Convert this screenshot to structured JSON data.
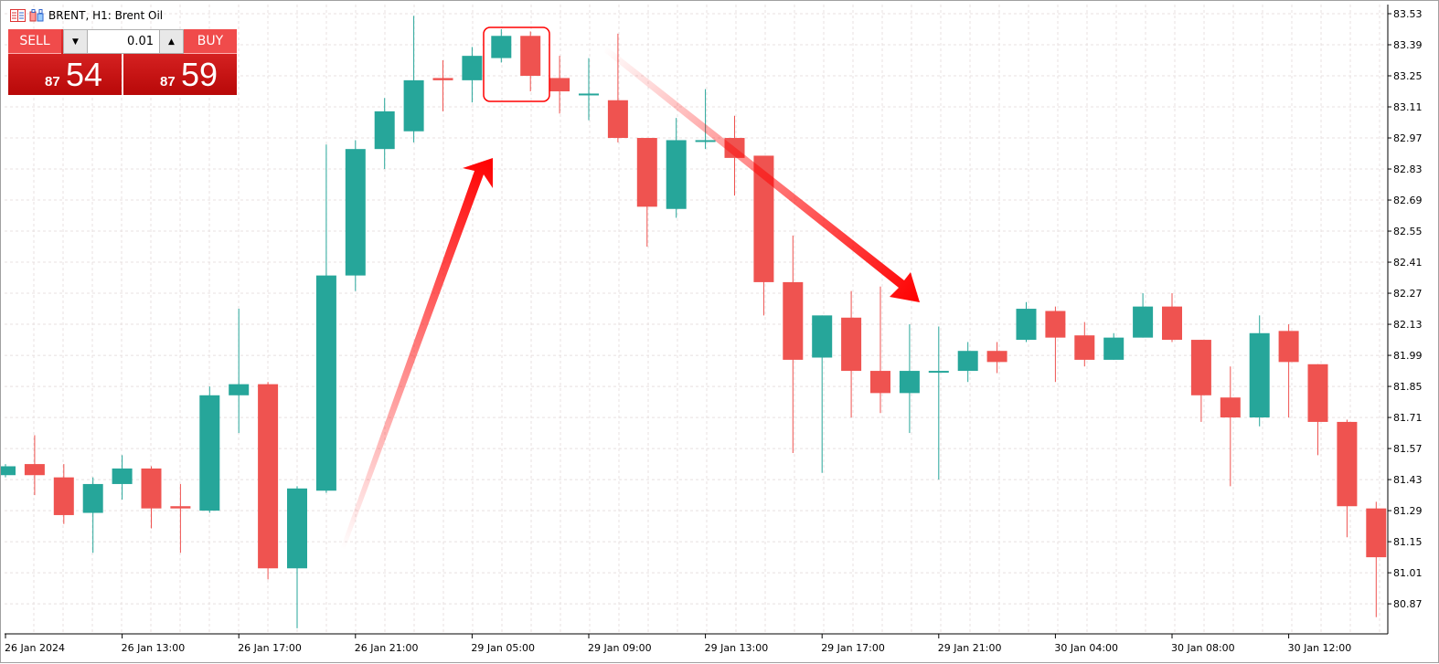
{
  "header": {
    "title": "BRENT, H1:  Brent Oil",
    "icons": [
      "market-watch-icon",
      "chart-template-icon"
    ]
  },
  "trade_panel": {
    "sell_label": "SELL",
    "buy_label": "BUY",
    "lot_value": "0.01",
    "sell_price_big": "54",
    "sell_price_small": "87",
    "buy_price_big": "59",
    "buy_price_small": "87"
  },
  "colors": {
    "bull": "#26a69a",
    "bear": "#ef5350",
    "annotation": "#ff0000",
    "grid": "#e8e0e0"
  },
  "chart_data": {
    "type": "candlestick",
    "symbol": "BRENT",
    "timeframe": "H1",
    "ylim": [
      80.8,
      83.57
    ],
    "y_ticks": [
      "83.53",
      "83.39",
      "83.25",
      "83.11",
      "82.97",
      "82.83",
      "82.69",
      "82.55",
      "82.41",
      "82.27",
      "82.13",
      "81.99",
      "81.85",
      "81.71",
      "81.57",
      "81.43",
      "81.29",
      "81.15",
      "81.01",
      "80.87"
    ],
    "x_ticks": [
      {
        "index": 0,
        "label": "26 Jan 2024"
      },
      {
        "index": 4,
        "label": "26 Jan 13:00"
      },
      {
        "index": 8,
        "label": "26 Jan 17:00"
      },
      {
        "index": 12,
        "label": "26 Jan 21:00"
      },
      {
        "index": 16,
        "label": "29 Jan 05:00"
      },
      {
        "index": 20,
        "label": "29 Jan 09:00"
      },
      {
        "index": 24,
        "label": "29 Jan 13:00"
      },
      {
        "index": 28,
        "label": "29 Jan 17:00"
      },
      {
        "index": 32,
        "label": "29 Jan 21:00"
      },
      {
        "index": 36,
        "label": "30 Jan 04:00"
      },
      {
        "index": 40,
        "label": "30 Jan 08:00"
      },
      {
        "index": 44,
        "label": "30 Jan 12:00"
      }
    ],
    "grid": true,
    "ohlc": [
      [
        81.45,
        81.5,
        81.44,
        81.49
      ],
      [
        81.5,
        81.63,
        81.36,
        81.45
      ],
      [
        81.44,
        81.5,
        81.23,
        81.27
      ],
      [
        81.28,
        81.44,
        81.1,
        81.41
      ],
      [
        81.41,
        81.54,
        81.34,
        81.48
      ],
      [
        81.48,
        81.49,
        81.21,
        81.3
      ],
      [
        81.31,
        81.41,
        81.1,
        81.3
      ],
      [
        81.29,
        81.85,
        81.28,
        81.81
      ],
      [
        81.81,
        82.2,
        81.64,
        81.86
      ],
      [
        81.86,
        81.87,
        80.98,
        81.03
      ],
      [
        81.03,
        81.4,
        80.76,
        81.39
      ],
      [
        81.38,
        82.94,
        81.37,
        82.35
      ],
      [
        82.35,
        82.96,
        82.28,
        82.92
      ],
      [
        82.92,
        83.15,
        82.83,
        83.09
      ],
      [
        83.0,
        83.52,
        82.95,
        83.23
      ],
      [
        83.24,
        83.32,
        83.09,
        83.23
      ],
      [
        83.23,
        83.38,
        83.13,
        83.34
      ],
      [
        83.33,
        83.46,
        83.31,
        83.43
      ],
      [
        83.43,
        83.45,
        83.18,
        83.25
      ],
      [
        83.24,
        83.34,
        83.08,
        83.18
      ],
      [
        83.17,
        83.33,
        83.05,
        83.17
      ],
      [
        83.14,
        83.44,
        82.95,
        82.97
      ],
      [
        82.97,
        82.97,
        82.48,
        82.66
      ],
      [
        82.65,
        83.06,
        82.61,
        82.96
      ],
      [
        82.96,
        83.19,
        82.92,
        82.96
      ],
      [
        82.97,
        83.07,
        82.71,
        82.88
      ],
      [
        82.89,
        82.89,
        82.17,
        82.32
      ],
      [
        82.32,
        82.53,
        81.55,
        81.97
      ],
      [
        81.98,
        82.17,
        81.46,
        82.17
      ],
      [
        82.16,
        82.28,
        81.71,
        81.92
      ],
      [
        81.92,
        82.3,
        81.73,
        81.82
      ],
      [
        81.82,
        82.13,
        81.64,
        81.92
      ],
      [
        81.92,
        82.12,
        81.43,
        81.92
      ],
      [
        81.92,
        82.05,
        81.87,
        82.01
      ],
      [
        82.01,
        82.05,
        81.91,
        81.96
      ],
      [
        82.06,
        82.23,
        82.05,
        82.2
      ],
      [
        82.19,
        82.21,
        81.87,
        82.07
      ],
      [
        82.08,
        82.14,
        81.94,
        81.97
      ],
      [
        81.97,
        82.09,
        81.97,
        82.07
      ],
      [
        82.07,
        82.27,
        82.07,
        82.21
      ],
      [
        82.21,
        82.27,
        82.05,
        82.06
      ],
      [
        82.06,
        82.06,
        81.69,
        81.81
      ],
      [
        81.8,
        81.94,
        81.4,
        81.71
      ],
      [
        81.71,
        82.17,
        81.67,
        82.09
      ],
      [
        82.1,
        82.13,
        81.71,
        81.96
      ],
      [
        81.95,
        81.95,
        81.54,
        81.69
      ],
      [
        81.69,
        81.7,
        81.17,
        81.31
      ],
      [
        81.3,
        81.33,
        80.81,
        81.08
      ]
    ],
    "annotations": [
      {
        "type": "arrow",
        "direction": "up",
        "from_index": 11,
        "to_index": 17
      },
      {
        "type": "arrow",
        "direction": "down",
        "from_index": 21,
        "to_index": 31
      },
      {
        "type": "highlight-box",
        "indices": [
          17,
          18
        ]
      }
    ]
  }
}
